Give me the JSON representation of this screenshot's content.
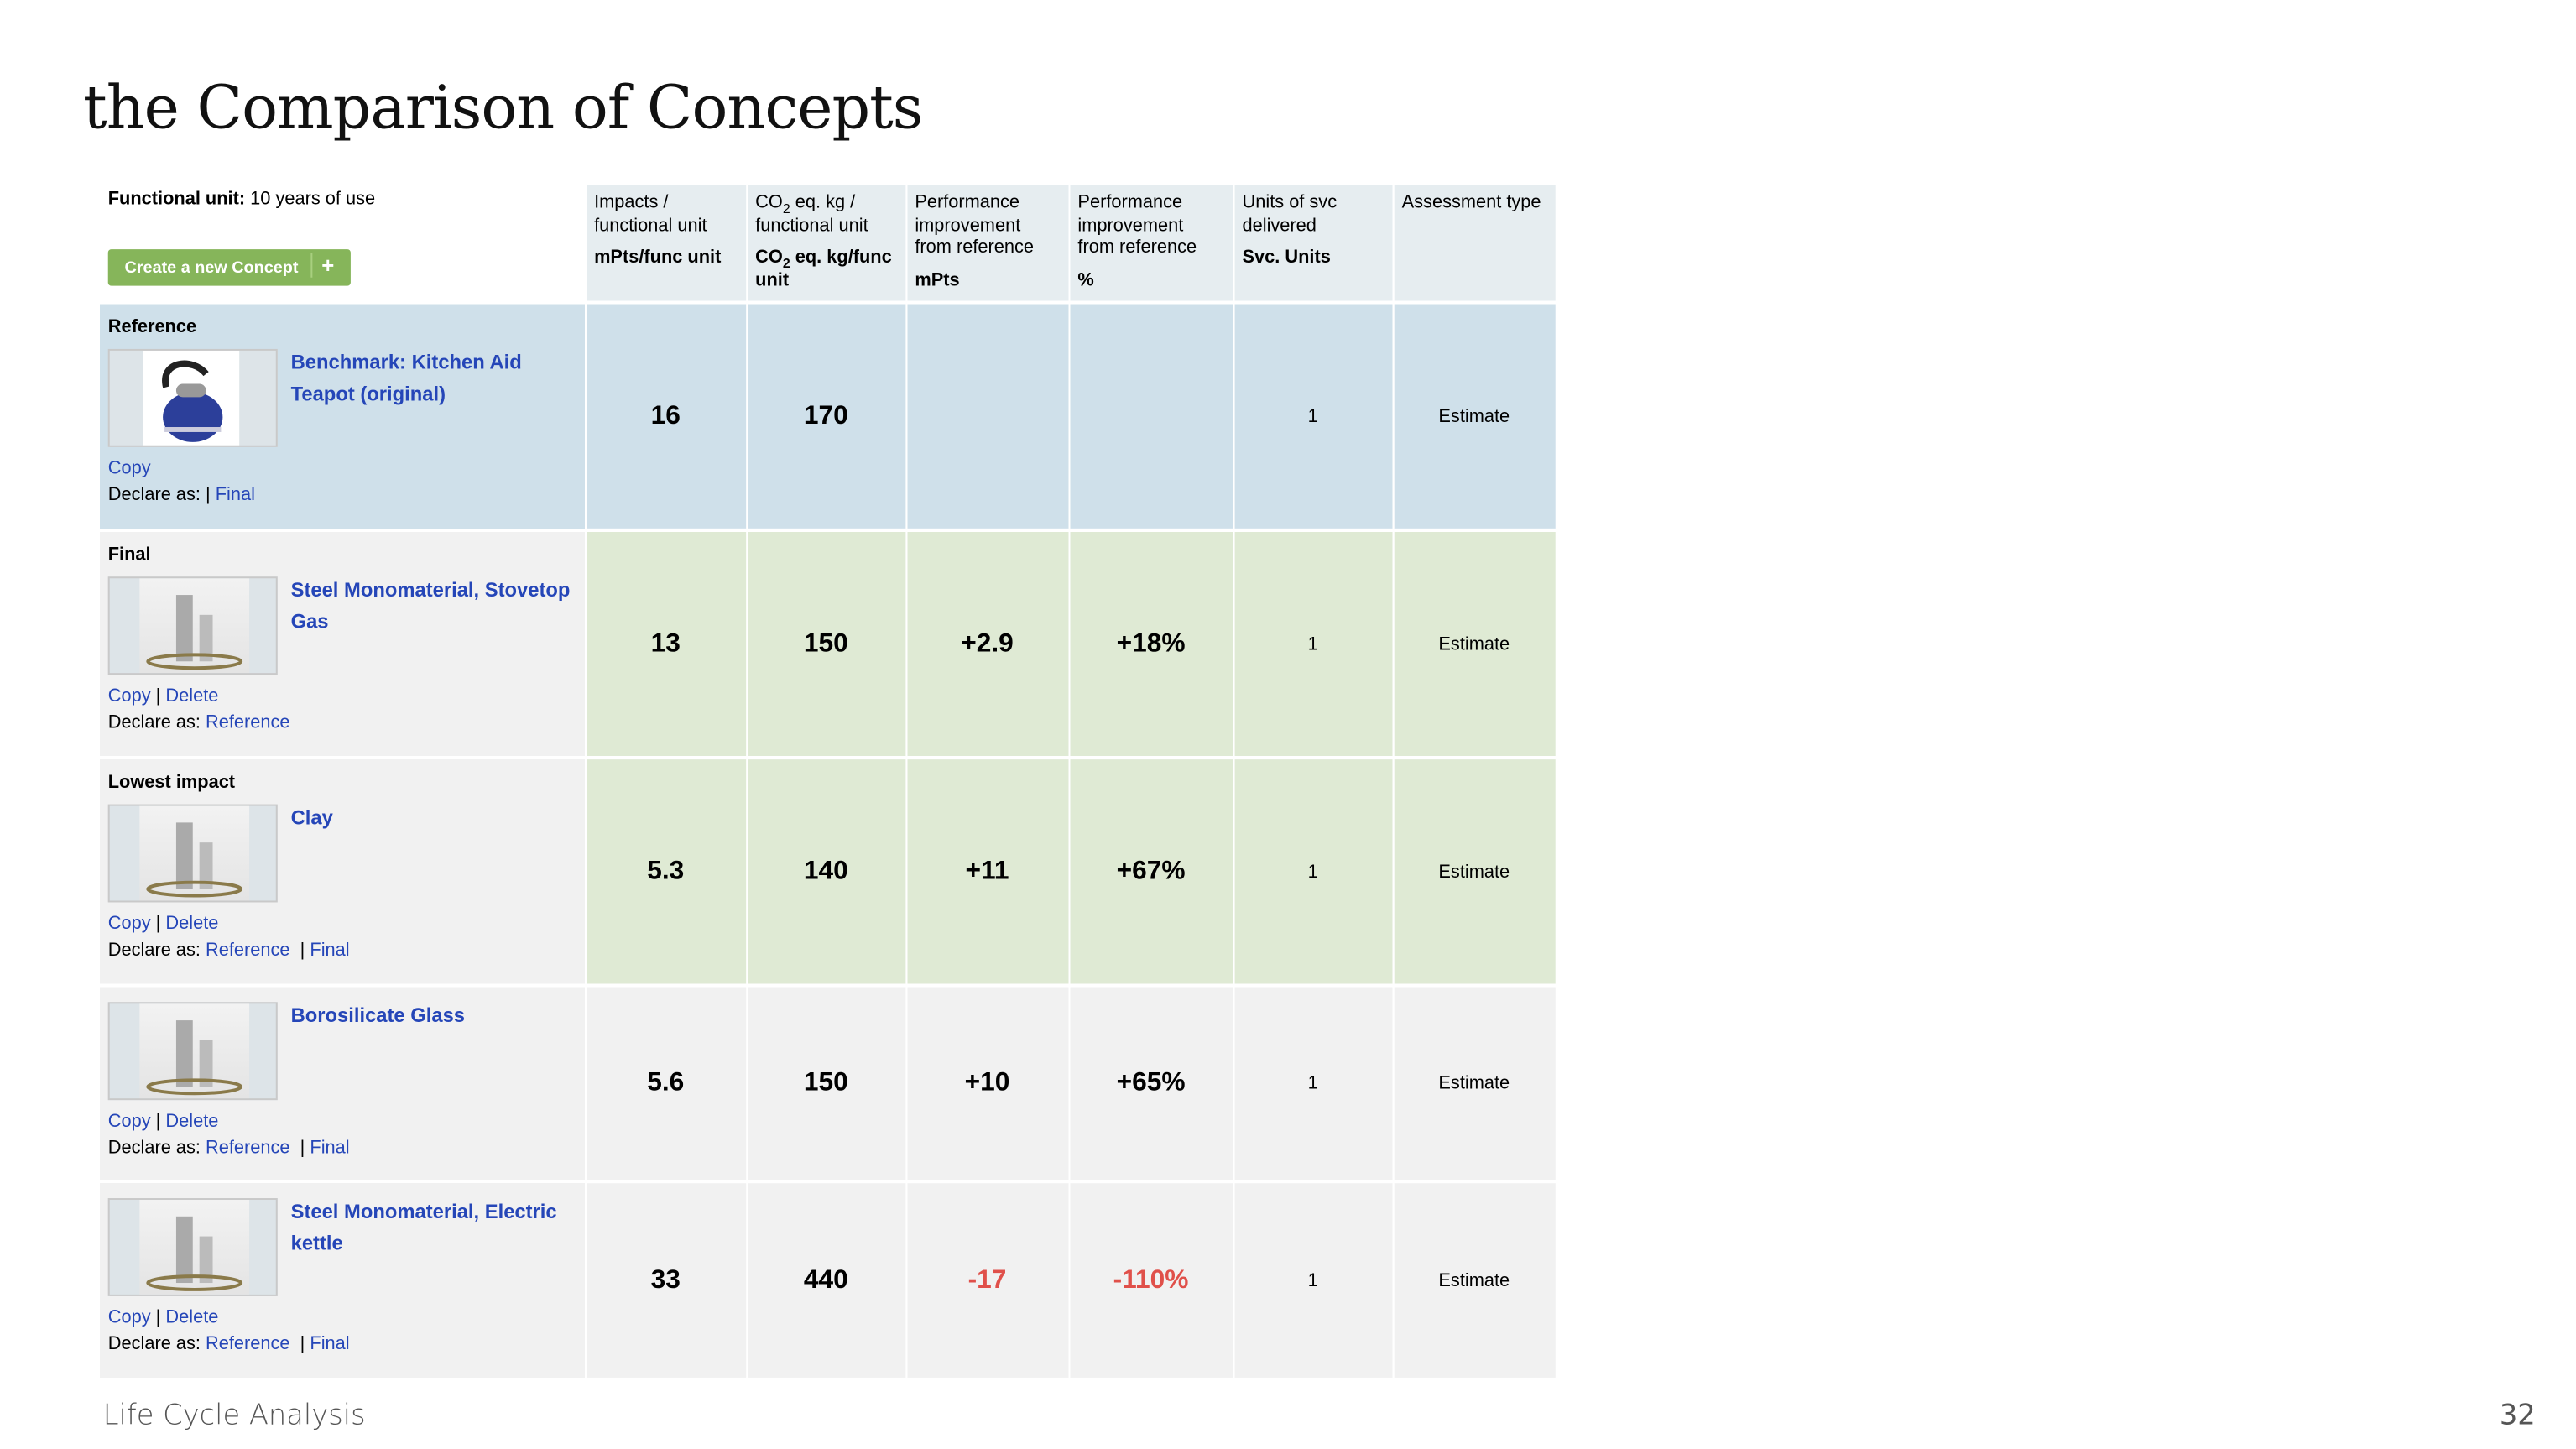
{
  "title": {
    "prefix": "the",
    "main": "Comparison of Concepts"
  },
  "footer": {
    "label": "Life Cycle Analysis",
    "page": "32"
  },
  "header": {
    "functional_unit_label": "Functional unit:",
    "functional_unit_value": "10 years of use",
    "create_button": "Create a new Concept",
    "create_plus": "+",
    "columns": [
      {
        "l1": "Impacts / functional unit",
        "unit": "mPts/func unit"
      },
      {
        "l1a": "CO",
        "sub": "2",
        "l1b": " eq. kg / functional unit",
        "unita": "CO",
        "unitsub": "2",
        "unitb": " eq. kg/func unit"
      },
      {
        "l1": "Performance improvement from reference",
        "unit": "mPts"
      },
      {
        "l1": "Performance improvement from reference",
        "unit": "%"
      },
      {
        "l1": "Units of svc delivered",
        "unit": "Svc. Units"
      },
      {
        "l1": "Assessment type",
        "unit": ""
      }
    ]
  },
  "rows": [
    {
      "label": "Reference",
      "name": "Benchmark: Kitchen Aid Teapot (original)",
      "actions": [
        "Copy"
      ],
      "declare_label": "Declare as:",
      "declare": [
        "Final"
      ],
      "impacts": "16",
      "co2": "170",
      "perf_mpts": "",
      "perf_pct": "",
      "units": "1",
      "assessment": "Estimate"
    },
    {
      "label": "Final",
      "name": "Steel Monomaterial, Stovetop Gas",
      "actions": [
        "Copy",
        "Delete"
      ],
      "declare_label": "Declare as:",
      "declare": [
        "Reference"
      ],
      "impacts": "13",
      "co2": "150",
      "perf_mpts": "+2.9",
      "perf_pct": "+18%",
      "units": "1",
      "assessment": "Estimate"
    },
    {
      "label": "Lowest impact",
      "name": "Clay",
      "actions": [
        "Copy",
        "Delete"
      ],
      "declare_label": "Declare as:",
      "declare": [
        "Reference",
        "Final"
      ],
      "impacts": "5.3",
      "co2": "140",
      "perf_mpts": "+11",
      "perf_pct": "+67%",
      "units": "1",
      "assessment": "Estimate"
    },
    {
      "label": "",
      "name": "Borosilicate Glass",
      "actions": [
        "Copy",
        "Delete"
      ],
      "declare_label": "Declare as:",
      "declare": [
        "Reference",
        "Final"
      ],
      "impacts": "5.6",
      "co2": "150",
      "perf_mpts": "+10",
      "perf_pct": "+65%",
      "units": "1",
      "assessment": "Estimate"
    },
    {
      "label": "",
      "name": "Steel Monomaterial, Electric kettle",
      "actions": [
        "Copy",
        "Delete"
      ],
      "declare_label": "Declare as:",
      "declare": [
        "Reference",
        "Final"
      ],
      "impacts": "33",
      "co2": "440",
      "perf_mpts": "-17",
      "perf_pct": "-110%",
      "units": "1",
      "assessment": "Estimate"
    }
  ],
  "colors": {
    "reference_bg": "#cfe0ea",
    "highlight_bg": "#dfead4",
    "default_bg": "#f1f1f1",
    "link": "#2546b8",
    "negative": "#e0504a",
    "button": "#86b55a"
  }
}
